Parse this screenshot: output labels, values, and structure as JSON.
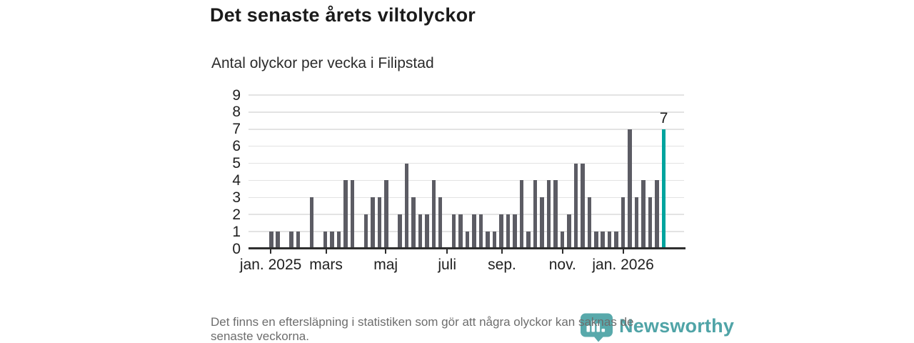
{
  "header": {
    "title": "Det senaste årets viltolyckor",
    "subtitle": "Antal olyckor per vecka i Filipstad"
  },
  "chart_data": {
    "type": "bar",
    "title": "Det senaste årets viltolyckor",
    "subtitle": "Antal olyckor per vecka i Filipstad",
    "x_unit": "vecka",
    "ylabel": "Antal olyckor",
    "values": [
      1,
      1,
      0,
      1,
      1,
      0,
      3,
      0,
      1,
      1,
      1,
      4,
      4,
      0,
      2,
      3,
      3,
      4,
      0,
      2,
      5,
      3,
      2,
      2,
      4,
      3,
      0,
      2,
      2,
      1,
      2,
      2,
      1,
      1,
      2,
      2,
      2,
      4,
      1,
      4,
      3,
      4,
      4,
      1,
      2,
      5,
      5,
      3,
      1,
      1,
      1,
      1,
      3,
      7,
      3,
      4,
      3,
      4,
      7
    ],
    "highlight_last_bar": true,
    "last_bar_label": "7",
    "ylim": [
      0,
      9
    ],
    "y_ticks": [
      0,
      1,
      2,
      3,
      4,
      5,
      6,
      7,
      8,
      9
    ],
    "x_ticks": [
      {
        "label": "jan. 2025",
        "pos": 0.051
      },
      {
        "label": "mars",
        "pos": 0.178
      },
      {
        "label": "maj",
        "pos": 0.315
      },
      {
        "label": "juli",
        "pos": 0.456
      },
      {
        "label": "sep.",
        "pos": 0.582
      },
      {
        "label": "nov.",
        "pos": 0.721
      },
      {
        "label": "jan. 2026",
        "pos": 0.86
      }
    ],
    "grid": true,
    "legend": false,
    "colors": {
      "bar": "#5c5c64",
      "highlight": "#00a49e",
      "gridline": "#e3e3e3",
      "axis": "#2e2e2e"
    }
  },
  "footnote": {
    "line1": "Det finns en eftersläpning i statistiken som gör att några olyckor kan saknas de",
    "line2": "senaste veckorna."
  },
  "logo": {
    "text": "Newsworthy",
    "color": "#429da0"
  }
}
